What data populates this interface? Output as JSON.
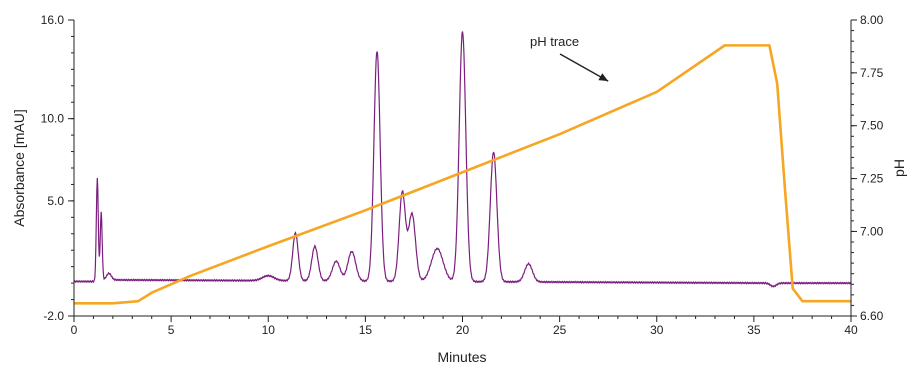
{
  "chart_data": {
    "type": "line",
    "title": "",
    "xlabel": "Minutes",
    "ylabel_left": "Absorbance [mAU]",
    "ylabel_right": "pH",
    "xlim": [
      0,
      40
    ],
    "ylim_left": [
      -2.0,
      16.0
    ],
    "ylim_right": [
      6.6,
      8.0
    ],
    "x_ticks": [
      0,
      5,
      10,
      15,
      20,
      25,
      30,
      35,
      40
    ],
    "x_tick_labels": [
      "0",
      "5",
      "10",
      "15",
      "20",
      "25",
      "30",
      "35",
      "40"
    ],
    "y_left_ticks": [
      -2.0,
      5.0,
      10.0,
      16.0
    ],
    "y_left_tick_labels": [
      "-2.0",
      "5.0",
      "10.0",
      "16.0"
    ],
    "y_right_ticks": [
      6.6,
      7.0,
      7.25,
      7.5,
      7.75,
      8.0
    ],
    "y_right_tick_labels": [
      "6.60",
      "7.00",
      "7.25",
      "7.50",
      "7.75",
      "8.00"
    ],
    "grid": false,
    "annotation": {
      "text": "pH trace",
      "arrow_to": {
        "x": 27.5,
        "pH": 7.73
      }
    },
    "series": [
      {
        "axis": "left",
        "color": "#7b1f7e",
        "baseline": 0.2,
        "baseline_end": 0.0,
        "peaks": [
          {
            "x": 1.2,
            "height": 6.2,
            "width": 0.05
          },
          {
            "x": 1.4,
            "height": 4.1,
            "width": 0.05
          },
          {
            "x": 1.8,
            "height": 0.4,
            "width": 0.12
          },
          {
            "x": 10.0,
            "height": 0.3,
            "width": 0.3
          },
          {
            "x": 11.4,
            "height": 2.9,
            "width": 0.14
          },
          {
            "x": 12.4,
            "height": 2.1,
            "width": 0.16
          },
          {
            "x": 13.5,
            "height": 1.2,
            "width": 0.2
          },
          {
            "x": 14.3,
            "height": 1.8,
            "width": 0.2
          },
          {
            "x": 15.6,
            "height": 14.0,
            "width": 0.16
          },
          {
            "x": 16.9,
            "height": 5.4,
            "width": 0.16
          },
          {
            "x": 17.4,
            "height": 4.1,
            "width": 0.18
          },
          {
            "x": 18.7,
            "height": 2.0,
            "width": 0.3
          },
          {
            "x": 20.0,
            "height": 15.2,
            "width": 0.17
          },
          {
            "x": 21.6,
            "height": 7.9,
            "width": 0.17
          },
          {
            "x": 23.4,
            "height": 1.1,
            "width": 0.2
          },
          {
            "x": 36.0,
            "height": -0.2,
            "width": 0.15
          }
        ]
      },
      {
        "axis": "right",
        "color": "#f5a623",
        "x": [
          0,
          2.0,
          3.3,
          4.0,
          6.0,
          10.0,
          15.0,
          20.0,
          25.0,
          30.0,
          33.5,
          35.8,
          36.2,
          36.6,
          37.0,
          37.5,
          40.0
        ],
        "y": [
          6.66,
          6.66,
          6.67,
          6.71,
          6.79,
          6.93,
          7.1,
          7.28,
          7.46,
          7.66,
          7.88,
          7.88,
          7.7,
          7.2,
          6.73,
          6.67,
          6.67
        ]
      }
    ]
  }
}
